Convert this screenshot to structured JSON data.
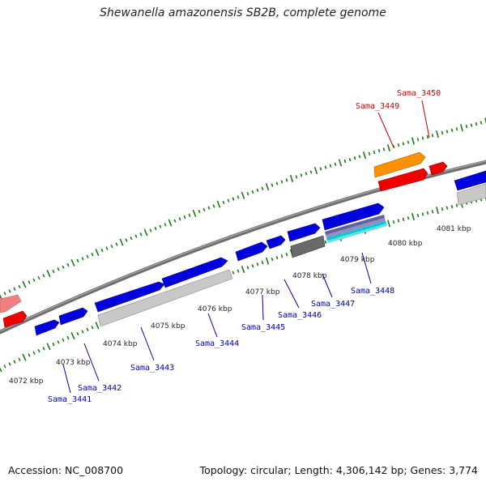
{
  "header": {
    "title": "Shewanella amazonensis SB2B, complete genome"
  },
  "footer": {
    "accession": "Accession: NC_008700",
    "summary": "Topology: circular; Length: 4,306,142 bp; Genes: 3,774"
  },
  "colors": {
    "backbone": "#7a7a7a",
    "tick": "#1a7a1a",
    "forward_gene": "#0000dd",
    "reverse_gene": "#ff0000",
    "rna_gene": "#ff8c00",
    "pseudo_gene": "#bbbbbb",
    "pale_gene": "#f08080",
    "gene_label_forward": "#0000aa",
    "gene_label_reverse": "#cc0000"
  },
  "scale": {
    "unit": "kbp",
    "tick_labels": [
      "4072 kbp",
      "4073 kbp",
      "4074 kbp",
      "4075 kbp",
      "4076 kbp",
      "4077 kbp",
      "4078 kbp",
      "4079 kbp",
      "4080 kbp",
      "4081 kbp"
    ]
  },
  "gene_labels": [
    {
      "name": "Sama_3441",
      "strand": "forward"
    },
    {
      "name": "Sama_3442",
      "strand": "forward"
    },
    {
      "name": "Sama_3443",
      "strand": "forward"
    },
    {
      "name": "Sama_3444",
      "strand": "forward"
    },
    {
      "name": "Sama_3445",
      "strand": "forward"
    },
    {
      "name": "Sama_3446",
      "strand": "forward"
    },
    {
      "name": "Sama_3447",
      "strand": "forward"
    },
    {
      "name": "Sama_3448",
      "strand": "forward"
    },
    {
      "name": "Sama_3449",
      "strand": "reverse"
    },
    {
      "name": "Sama_3450",
      "strand": "reverse"
    }
  ]
}
